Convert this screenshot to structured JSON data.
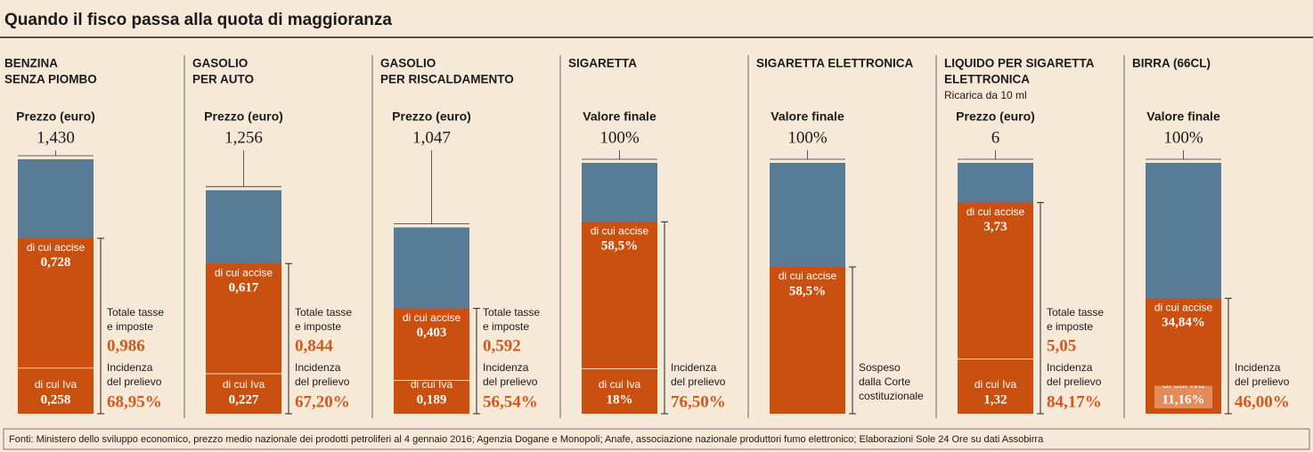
{
  "title": "Quando il fisco passa alla quota di maggioranza",
  "source": "Fonti: Ministero dello sviluppo economico, prezzo medio nazionale dei prodotti petroliferi al 4 gennaio 2016; Agenzia Dogane e Monopoli; Anafe, associazione nazionale produttori fumo elettronico; Elaborazioni Sole 24 Ore su dati Assobirra",
  "chart_data": [
    {
      "type": "stacked-bar",
      "title": [
        "BENZINA",
        "SENZA PIOMBO"
      ],
      "measure": "Prezzo (euro)",
      "ylim": [
        0,
        1.41
      ],
      "color": "#587b96",
      "total": {
        "value": 1.43,
        "label": "1,430"
      },
      "segments": [
        {
          "name": "di cui Iva",
          "value": 0.258,
          "label": "0,258",
          "color": "#c9500e"
        },
        {
          "name": "di cui accise",
          "value": 0.728,
          "label": "0,728",
          "color": "#c9500e"
        }
      ],
      "tax": {
        "name": [
          "Totale tasse",
          "e imposte"
        ],
        "value": 0.986,
        "label": "0,986"
      },
      "incidence": {
        "name": [
          "Incidenza",
          "del prelievo"
        ],
        "value": 68.95,
        "label": "68,95%"
      }
    },
    {
      "type": "stacked-bar",
      "title": [
        "GASOLIO",
        "PER AUTO"
      ],
      "measure": "Prezzo (euro)",
      "ylim": [
        0,
        1.41
      ],
      "color": "#587b96",
      "total": {
        "value": 1.256,
        "label": "1,256"
      },
      "segments": [
        {
          "name": "di cui Iva",
          "value": 0.227,
          "label": "0,227",
          "color": "#c9500e"
        },
        {
          "name": "di cui accise",
          "value": 0.617,
          "label": "0,617",
          "color": "#c9500e"
        }
      ],
      "tax": {
        "name": [
          "Totale tasse",
          "e imposte"
        ],
        "value": 0.844,
        "label": "0,844"
      },
      "incidence": {
        "name": [
          "Incidenza",
          "del prelievo"
        ],
        "value": 67.2,
        "label": "67,20%"
      }
    },
    {
      "type": "stacked-bar",
      "title": [
        "GASOLIO",
        "PER RISCALDAMENTO"
      ],
      "measure": "Prezzo (euro)",
      "ylim": [
        0,
        1.41
      ],
      "color": "#587b96",
      "total": {
        "value": 1.047,
        "label": "1,047"
      },
      "segments": [
        {
          "name": "di cui Iva",
          "value": 0.189,
          "label": "0,189",
          "color": "#c9500e"
        },
        {
          "name": "di cui accise",
          "value": 0.403,
          "label": "0,403",
          "color": "#c9500e"
        }
      ],
      "tax": {
        "name": [
          "Totale tasse",
          "e imposte"
        ],
        "value": 0.592,
        "label": "0,592"
      },
      "incidence": {
        "name": [
          "Incidenza",
          "del prelievo"
        ],
        "value": 56.54,
        "label": "56,54%"
      }
    },
    {
      "type": "stacked-bar",
      "title": [
        "SIGARETTA"
      ],
      "measure": "Valore finale",
      "ylim": [
        0,
        100
      ],
      "color": "#587b96",
      "total": {
        "value": 100,
        "label": "100%"
      },
      "segments": [
        {
          "name": "di cui Iva",
          "value": 18,
          "label": "18%",
          "color": "#c9500e"
        },
        {
          "name": "di cui accise",
          "value": 58.5,
          "label": "58,5%",
          "color": "#c9500e"
        }
      ],
      "incidence": {
        "name": [
          "Incidenza",
          "del prelievo"
        ],
        "value": 76.5,
        "label": "76,50%"
      }
    },
    {
      "type": "stacked-bar",
      "title": [
        "SIGARETTA ELETTRONICA"
      ],
      "measure": "Valore finale",
      "ylim": [
        0,
        100
      ],
      "color": "#587b96",
      "total": {
        "value": 100,
        "label": "100%"
      },
      "segments": [
        {
          "name": "di cui accise",
          "value": 58.5,
          "label": "58,5%",
          "color": "#c9500e"
        }
      ],
      "note": [
        "Sospeso",
        "dalla Corte",
        "costituzionale"
      ]
    },
    {
      "type": "stacked-bar",
      "title": [
        "LIQUIDO PER SIGARETTA",
        "ELETTRONICA"
      ],
      "subtitle": "Ricarica da 10 ml",
      "measure": "Prezzo (euro)",
      "ylim": [
        0,
        6
      ],
      "color": "#587b96",
      "total": {
        "value": 6,
        "label": "6"
      },
      "segments": [
        {
          "name": "di cui Iva",
          "value": 1.32,
          "label": "1,32",
          "color": "#c9500e"
        },
        {
          "name": "di cui accise",
          "value": 3.73,
          "label": "3,73",
          "color": "#c9500e"
        }
      ],
      "tax": {
        "name": [
          "Totale tasse",
          "e imposte"
        ],
        "value": 5.05,
        "label": "5,05"
      },
      "incidence": {
        "name": [
          "Incidenza",
          "del prelievo"
        ],
        "value": 84.17,
        "label": "84,17%"
      }
    },
    {
      "type": "stacked-bar",
      "title": [
        "BIRRA (66CL)"
      ],
      "measure": "Valore finale",
      "ylim": [
        0,
        100
      ],
      "color": "#587b96",
      "total": {
        "value": 100,
        "label": "100%"
      },
      "segments": [
        {
          "name": "di cui Iva",
          "value": 11.16,
          "label": "11,16%",
          "color": "#c9500e",
          "boxed": true
        },
        {
          "name": "di cui accise",
          "value": 34.84,
          "label": "34,84%",
          "color": "#c9500e"
        }
      ],
      "incidence": {
        "name": [
          "Incidenza",
          "del prelievo"
        ],
        "value": 46.0,
        "label": "46,00%"
      }
    }
  ]
}
